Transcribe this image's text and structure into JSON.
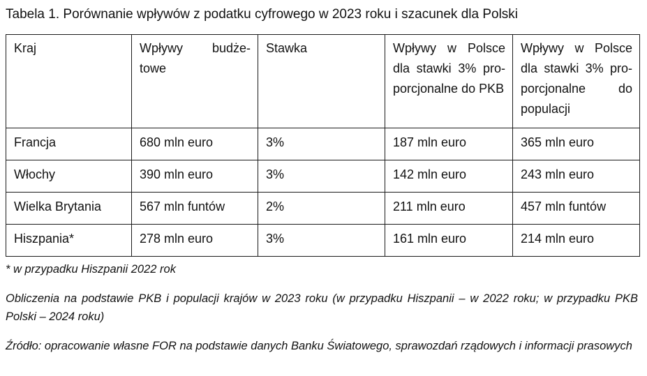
{
  "title": "Tabela  1. Porównanie wpływów z podatku cyfrowego w 2023 roku i szacunek dla Polski",
  "table": {
    "headers": [
      "Kraj",
      "Wpływy budże-towe",
      "Stawka",
      "Wpływy w Polsce dla stawki 3% pro-porcjonalne do PKB",
      "Wpływy w Polsce dla stawki 3% pro-porcjonalne do populacji"
    ],
    "rows": [
      [
        "Francja",
        "680 mln euro",
        "3%",
        "187 mln euro",
        "365 mln euro"
      ],
      [
        "Włochy",
        "390 mln euro",
        "3%",
        "142 mln euro",
        "243 mln euro"
      ],
      [
        "Wielka Brytania",
        "567 mln funtów",
        "2%",
        "211 mln euro",
        "457 mln funtów"
      ],
      [
        "Hiszpania*",
        "278 mln euro",
        "3%",
        "161 mln euro",
        "214 mln euro"
      ]
    ]
  },
  "notes": {
    "footnote": "* w przypadku Hiszpanii 2022 rok",
    "calculation": "Obliczenia na podstawie PKB i populacji krajów w 2023 roku (w przypadku Hiszpanii – w 2022 roku; w przypadku PKB Polski – 2024 roku)",
    "source": "Źródło: opracowanie własne FOR na podstawie danych Banku Światowego, sprawozdań rządowych i informacji prasowych"
  }
}
